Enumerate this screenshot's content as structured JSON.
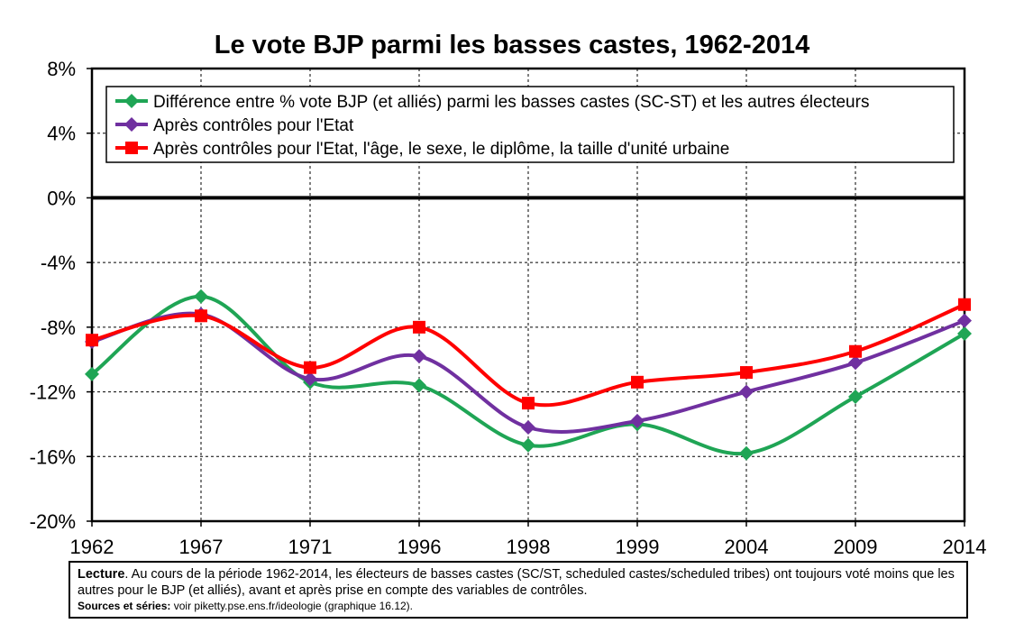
{
  "chart_data": {
    "type": "line",
    "title": "Le vote BJP parmi les basses castes, 1962-2014",
    "categories": [
      "1962",
      "1967",
      "1971",
      "1996",
      "1998",
      "1999",
      "2004",
      "2009",
      "2014"
    ],
    "ylim": [
      -20,
      8
    ],
    "yticks": [
      8,
      4,
      0,
      -4,
      -8,
      -12,
      -16,
      -20
    ],
    "ytick_labels": [
      "8%",
      "4%",
      "0%",
      "-4%",
      "-8%",
      "-12%",
      "-16%",
      "-20%"
    ],
    "grid": true,
    "legend_position": "top",
    "series": [
      {
        "name": "Différence entre % vote BJP (et alliés) parmi les basses castes (SC-ST) et les autres électeurs",
        "color": "#1fa555",
        "marker": "diamond",
        "values": [
          -10.9,
          -6.1,
          -11.4,
          -11.6,
          -15.3,
          -14.0,
          -15.8,
          -12.3,
          -8.4
        ]
      },
      {
        "name": "Après contrôles pour l'Etat",
        "color": "#7030a0",
        "marker": "diamond",
        "values": [
          -8.9,
          -7.2,
          -11.2,
          -9.8,
          -14.2,
          -13.8,
          -12.0,
          -10.2,
          -7.6
        ]
      },
      {
        "name": "Après contrôles pour l'Etat, l'âge, le sexe, le diplôme, la taille d'unité urbaine",
        "color": "#ff0000",
        "marker": "square",
        "values": [
          -8.8,
          -7.3,
          -10.5,
          -8.0,
          -12.7,
          -11.4,
          -10.8,
          -9.5,
          -6.6
        ]
      }
    ]
  },
  "note": {
    "lecture_label": "Lecture",
    "lecture_text": ". Au cours de la période 1962-2014, les électeurs de basses castes (SC/ST, scheduled castes/scheduled tribes) ont toujours voté moins que les autres pour le BJP (et alliés), avant et après prise en compte des variables de contrôles.",
    "sources_label": "Sources et séries:",
    "sources_text": " voir piketty.pse.ens.fr/ideologie (graphique 16.12)."
  }
}
